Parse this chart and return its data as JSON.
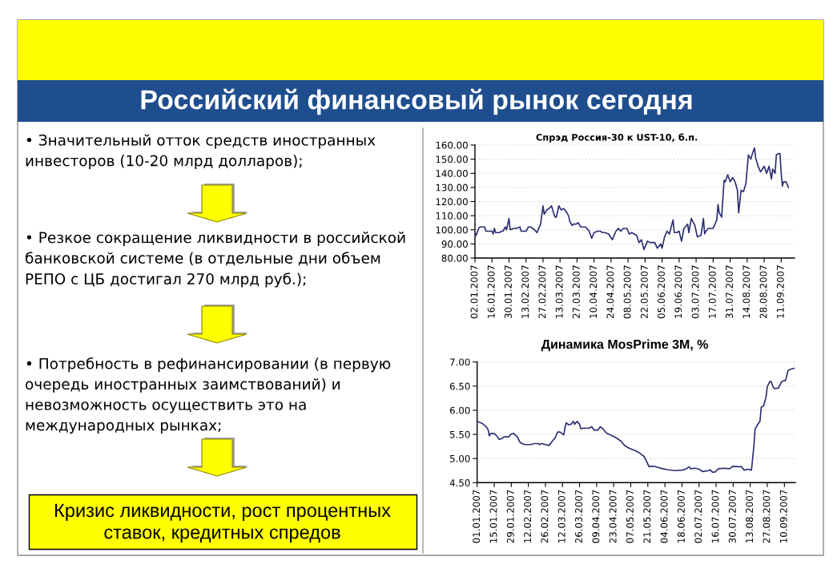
{
  "chart_data": [
    {
      "type": "other",
      "title": "Российский финансовый рынок сегодня",
      "annotations": [
        "• Значительный отток средств иностранных инвесторов (10-20 млрд долларов);",
        "• Резкое сокращение ликвидности в российской банковской системе (в отдельные дни объем РЕПО с ЦБ достигал 270 млрд руб.);",
        "• Потребность в рефинансировании (в первую очередь иностранных заимствований) и невозможность осуществить это на международных рынках;",
        "Кризис ликвидности, рост процентных ставок, кредитных спредов"
      ]
    },
    {
      "type": "line",
      "title": "Спрэд Россия-30 к UST-10, б.п.",
      "line_style": "solid",
      "grid": "y",
      "x": [
        "2007-01-02",
        "2007-01-03",
        "2007-01-05",
        "2007-01-06",
        "2007-01-09",
        "2007-01-10",
        "2007-01-11",
        "2007-01-14",
        "2007-01-16",
        "2007-01-17",
        "2007-01-18",
        "2007-01-19",
        "2007-01-22",
        "2007-01-24",
        "2007-01-25",
        "2007-01-27",
        "2007-01-28",
        "2007-01-30",
        "2007-01-31",
        "2007-02-03",
        "2007-02-05",
        "2007-02-08",
        "2007-02-09",
        "2007-02-13",
        "2007-02-15",
        "2007-02-17",
        "2007-02-20",
        "2007-02-22",
        "2007-02-25",
        "2007-02-27",
        "2007-02-28",
        "2007-03-02",
        "2007-03-04",
        "2007-03-06",
        "2007-03-08",
        "2007-03-09",
        "2007-03-10",
        "2007-03-12",
        "2007-03-14",
        "2007-03-16",
        "2007-03-18",
        "2007-03-20",
        "2007-03-21",
        "2007-03-23",
        "2007-03-24",
        "2007-03-26",
        "2007-03-28",
        "2007-03-30",
        "2007-04-03",
        "2007-04-04",
        "2007-04-06",
        "2007-04-08",
        "2007-04-10",
        "2007-04-13",
        "2007-04-15",
        "2007-04-17",
        "2007-04-19",
        "2007-04-22",
        "2007-04-25",
        "2007-04-28",
        "2007-04-30",
        "2007-05-02",
        "2007-05-04",
        "2007-05-07",
        "2007-05-09",
        "2007-05-11",
        "2007-05-15",
        "2007-05-17",
        "2007-05-19",
        "2007-05-21",
        "2007-05-24",
        "2007-05-26",
        "2007-05-28",
        "2007-05-30",
        "2007-06-01",
        "2007-06-04",
        "2007-06-05",
        "2007-06-07",
        "2007-06-09",
        "2007-06-11",
        "2007-06-14",
        "2007-06-15",
        "2007-06-17",
        "2007-06-19",
        "2007-06-21",
        "2007-06-23",
        "2007-06-26",
        "2007-06-27",
        "2007-06-29",
        "2007-07-02",
        "2007-07-04",
        "2007-07-07",
        "2007-07-09",
        "2007-07-10",
        "2007-07-11",
        "2007-07-13",
        "2007-07-17",
        "2007-07-20",
        "2007-07-21",
        "2007-07-22",
        "2007-07-24",
        "2007-07-26",
        "2007-07-27",
        "2007-07-29",
        "2007-07-31",
        "2007-08-02",
        "2007-08-04",
        "2007-08-06",
        "2007-08-07",
        "2007-08-09",
        "2007-08-11",
        "2007-08-13",
        "2007-08-15",
        "2007-08-17",
        "2007-08-18",
        "2007-08-20",
        "2007-08-21",
        "2007-08-23",
        "2007-08-25",
        "2007-08-28",
        "2007-08-30",
        "2007-09-01",
        "2007-09-03",
        "2007-09-04",
        "2007-09-06",
        "2007-09-07",
        "2007-09-09",
        "2007-09-10",
        "2007-09-11",
        "2007-09-12",
        "2007-09-13",
        "2007-09-15",
        "2007-09-17"
      ],
      "series": [
        {
          "color": "#2c2f72",
          "values": [
            98,
            96,
            101,
            102,
            102,
            102,
            99,
            99,
            99,
            97,
            101,
            98,
            98,
            99,
            99,
            102,
            100,
            108,
            100,
            101,
            101,
            102,
            99,
            99,
            102,
            102,
            100,
            98,
            104,
            117,
            111,
            114,
            115,
            117,
            111,
            109,
            109,
            117,
            114,
            115,
            113,
            110,
            106,
            103,
            104,
            104,
            105,
            102,
            102,
            101,
            99,
            94,
            98,
            99,
            99,
            98,
            98,
            97,
            93,
            99,
            101,
            99,
            101,
            101,
            97,
            98,
            96,
            91,
            93,
            86,
            92,
            91,
            91,
            91,
            87,
            90,
            87,
            95,
            99,
            97,
            107,
            98,
            98,
            99,
            92,
            101,
            104,
            98,
            108,
            103,
            95,
            96,
            108,
            97,
            99,
            101,
            101,
            107,
            118,
            112,
            109,
            135,
            134,
            139,
            134,
            137,
            134,
            128,
            112,
            128,
            127,
            133,
            153,
            150,
            153,
            158,
            151,
            145,
            141,
            145,
            140,
            145,
            136,
            143,
            140,
            153,
            154,
            154,
            140,
            131,
            134,
            134,
            130
          ]
        }
      ],
      "xlim": [
        "2007-01-02",
        "2007-09-22"
      ],
      "xticks": [
        {
          "value": "2007-01-02",
          "label": "02.01.2007"
        },
        {
          "value": "2007-01-16",
          "label": "16.01.2007"
        },
        {
          "value": "2007-01-30",
          "label": "30.01.2007"
        },
        {
          "value": "2007-02-13",
          "label": "13.02.2007"
        },
        {
          "value": "2007-02-27",
          "label": "27.02.2007"
        },
        {
          "value": "2007-03-13",
          "label": "13.03.2007"
        },
        {
          "value": "2007-03-27",
          "label": "27.03.2007"
        },
        {
          "value": "2007-04-10",
          "label": "10.04.2007"
        },
        {
          "value": "2007-04-24",
          "label": "24.04.2007"
        },
        {
          "value": "2007-05-08",
          "label": "08.05.2007"
        },
        {
          "value": "2007-05-22",
          "label": "22.05.2007"
        },
        {
          "value": "2007-06-05",
          "label": "05.06.2007"
        },
        {
          "value": "2007-06-19",
          "label": "19.06.2007"
        },
        {
          "value": "2007-07-03",
          "label": "03.07.2007"
        },
        {
          "value": "2007-07-17",
          "label": "17.07.2007"
        },
        {
          "value": "2007-07-31",
          "label": "31.07.2007"
        },
        {
          "value": "2007-08-14",
          "label": "14.08.2007"
        },
        {
          "value": "2007-08-28",
          "label": "28.08.2007"
        },
        {
          "value": "2007-09-11",
          "label": "11.09.2007"
        }
      ],
      "ylim": [
        80,
        160
      ],
      "yticks": [
        {
          "value": 80,
          "label": "80.00"
        },
        {
          "value": 90,
          "label": "90.00"
        },
        {
          "value": 100,
          "label": "100.00"
        },
        {
          "value": 110,
          "label": "110.00"
        },
        {
          "value": 120,
          "label": "120.00"
        },
        {
          "value": 130,
          "label": "130.00"
        },
        {
          "value": 140,
          "label": "140.00"
        },
        {
          "value": 150,
          "label": "150.00"
        },
        {
          "value": 160,
          "label": "160.00"
        }
      ]
    },
    {
      "type": "line",
      "title": "Динамика MosPrime 3M, %",
      "line_style": "solid",
      "grid": "y",
      "x": [
        "2007-01-01",
        "2007-01-05",
        "2007-01-08",
        "2007-01-10",
        "2007-01-11",
        "2007-01-12",
        "2007-01-15",
        "2007-01-17",
        "2007-01-19",
        "2007-01-21",
        "2007-01-23",
        "2007-01-27",
        "2007-01-29",
        "2007-01-31",
        "2007-02-03",
        "2007-02-05",
        "2007-02-07",
        "2007-02-09",
        "2007-02-14",
        "2007-02-17",
        "2007-02-20",
        "2007-02-21",
        "2007-02-23",
        "2007-02-26",
        "2007-03-01",
        "2007-03-03",
        "2007-03-06",
        "2007-03-08",
        "2007-03-10",
        "2007-03-13",
        "2007-03-14",
        "2007-03-15",
        "2007-03-17",
        "2007-03-19",
        "2007-03-21",
        "2007-03-22",
        "2007-03-24",
        "2007-03-26",
        "2007-03-27",
        "2007-03-30",
        "2007-04-03",
        "2007-04-05",
        "2007-04-07",
        "2007-04-10",
        "2007-04-12",
        "2007-04-14",
        "2007-04-17",
        "2007-04-21",
        "2007-04-25",
        "2007-04-29",
        "2007-05-02",
        "2007-05-06",
        "2007-05-11",
        "2007-05-14",
        "2007-05-16",
        "2007-05-18",
        "2007-05-20",
        "2007-05-22",
        "2007-05-23",
        "2007-05-26",
        "2007-05-29",
        "2007-06-02",
        "2007-06-06",
        "2007-06-12",
        "2007-06-18",
        "2007-06-21",
        "2007-06-24",
        "2007-06-25",
        "2007-06-29",
        "2007-07-02",
        "2007-07-05",
        "2007-07-10",
        "2007-07-11",
        "2007-07-13",
        "2007-07-15",
        "2007-07-18",
        "2007-07-23",
        "2007-07-27",
        "2007-07-30",
        "2007-08-03",
        "2007-08-06",
        "2007-08-08",
        "2007-08-11",
        "2007-08-14",
        "2007-08-16",
        "2007-08-17",
        "2007-08-19",
        "2007-08-21",
        "2007-08-22",
        "2007-08-24",
        "2007-08-26",
        "2007-08-27",
        "2007-08-29",
        "2007-08-30",
        "2007-09-01",
        "2007-09-02",
        "2007-09-05",
        "2007-09-08",
        "2007-09-11",
        "2007-09-13",
        "2007-09-15",
        "2007-09-18"
      ],
      "series": [
        {
          "color": "#2c2f72",
          "values": [
            5.77,
            5.73,
            5.67,
            5.6,
            5.47,
            5.52,
            5.52,
            5.47,
            5.4,
            5.41,
            5.45,
            5.45,
            5.51,
            5.52,
            5.45,
            5.34,
            5.31,
            5.29,
            5.29,
            5.31,
            5.31,
            5.29,
            5.31,
            5.29,
            5.27,
            5.34,
            5.43,
            5.55,
            5.55,
            5.49,
            5.63,
            5.74,
            5.7,
            5.71,
            5.77,
            5.71,
            5.77,
            5.71,
            5.62,
            5.63,
            5.63,
            5.66,
            5.59,
            5.59,
            5.66,
            5.62,
            5.53,
            5.48,
            5.43,
            5.36,
            5.27,
            5.21,
            5.16,
            5.12,
            5.08,
            5.04,
            4.94,
            4.83,
            4.84,
            4.84,
            4.82,
            4.79,
            4.77,
            4.75,
            4.76,
            4.78,
            4.83,
            4.79,
            4.8,
            4.78,
            4.73,
            4.75,
            4.77,
            4.72,
            4.72,
            4.79,
            4.8,
            4.79,
            4.84,
            4.83,
            4.83,
            4.76,
            4.78,
            4.76,
            5.26,
            5.62,
            5.7,
            5.77,
            6.06,
            6.09,
            6.28,
            6.49,
            6.59,
            6.6,
            6.47,
            6.45,
            6.46,
            6.6,
            6.62,
            6.82,
            6.85,
            6.87
          ]
        }
      ],
      "xlim": [
        "2007-01-01",
        "2007-09-19"
      ],
      "xticks": [
        {
          "value": "2007-01-01",
          "label": "01.01.2007"
        },
        {
          "value": "2007-01-15",
          "label": "15.01.2007"
        },
        {
          "value": "2007-01-29",
          "label": "29.01.2007"
        },
        {
          "value": "2007-02-12",
          "label": "12.02.2007"
        },
        {
          "value": "2007-02-26",
          "label": "26.02.2007"
        },
        {
          "value": "2007-03-12",
          "label": "12.03.2007"
        },
        {
          "value": "2007-03-26",
          "label": "26.03.2007"
        },
        {
          "value": "2007-04-09",
          "label": "09.04.2007"
        },
        {
          "value": "2007-04-23",
          "label": "23.04.2007"
        },
        {
          "value": "2007-05-07",
          "label": "07.05.2007"
        },
        {
          "value": "2007-05-21",
          "label": "21.05.2007"
        },
        {
          "value": "2007-06-04",
          "label": "04.06.2007"
        },
        {
          "value": "2007-06-18",
          "label": "18.06.2007"
        },
        {
          "value": "2007-07-02",
          "label": "02.07.2007"
        },
        {
          "value": "2007-07-16",
          "label": "16.07.2007"
        },
        {
          "value": "2007-07-30",
          "label": "30.07.2007"
        },
        {
          "value": "2007-08-13",
          "label": "13.08.2007"
        },
        {
          "value": "2007-08-27",
          "label": "27.08.2007"
        },
        {
          "value": "2007-09-10",
          "label": "10.09.2007"
        }
      ],
      "ylim": [
        4.5,
        7
      ],
      "yticks": [
        {
          "value": 4.5,
          "label": "4.50"
        },
        {
          "value": 5,
          "label": "5.00"
        },
        {
          "value": 5.5,
          "label": "5.50"
        },
        {
          "value": 6,
          "label": "6.00"
        },
        {
          "value": 6.5,
          "label": "6.50"
        },
        {
          "value": 7,
          "label": "7.00"
        }
      ]
    }
  ]
}
